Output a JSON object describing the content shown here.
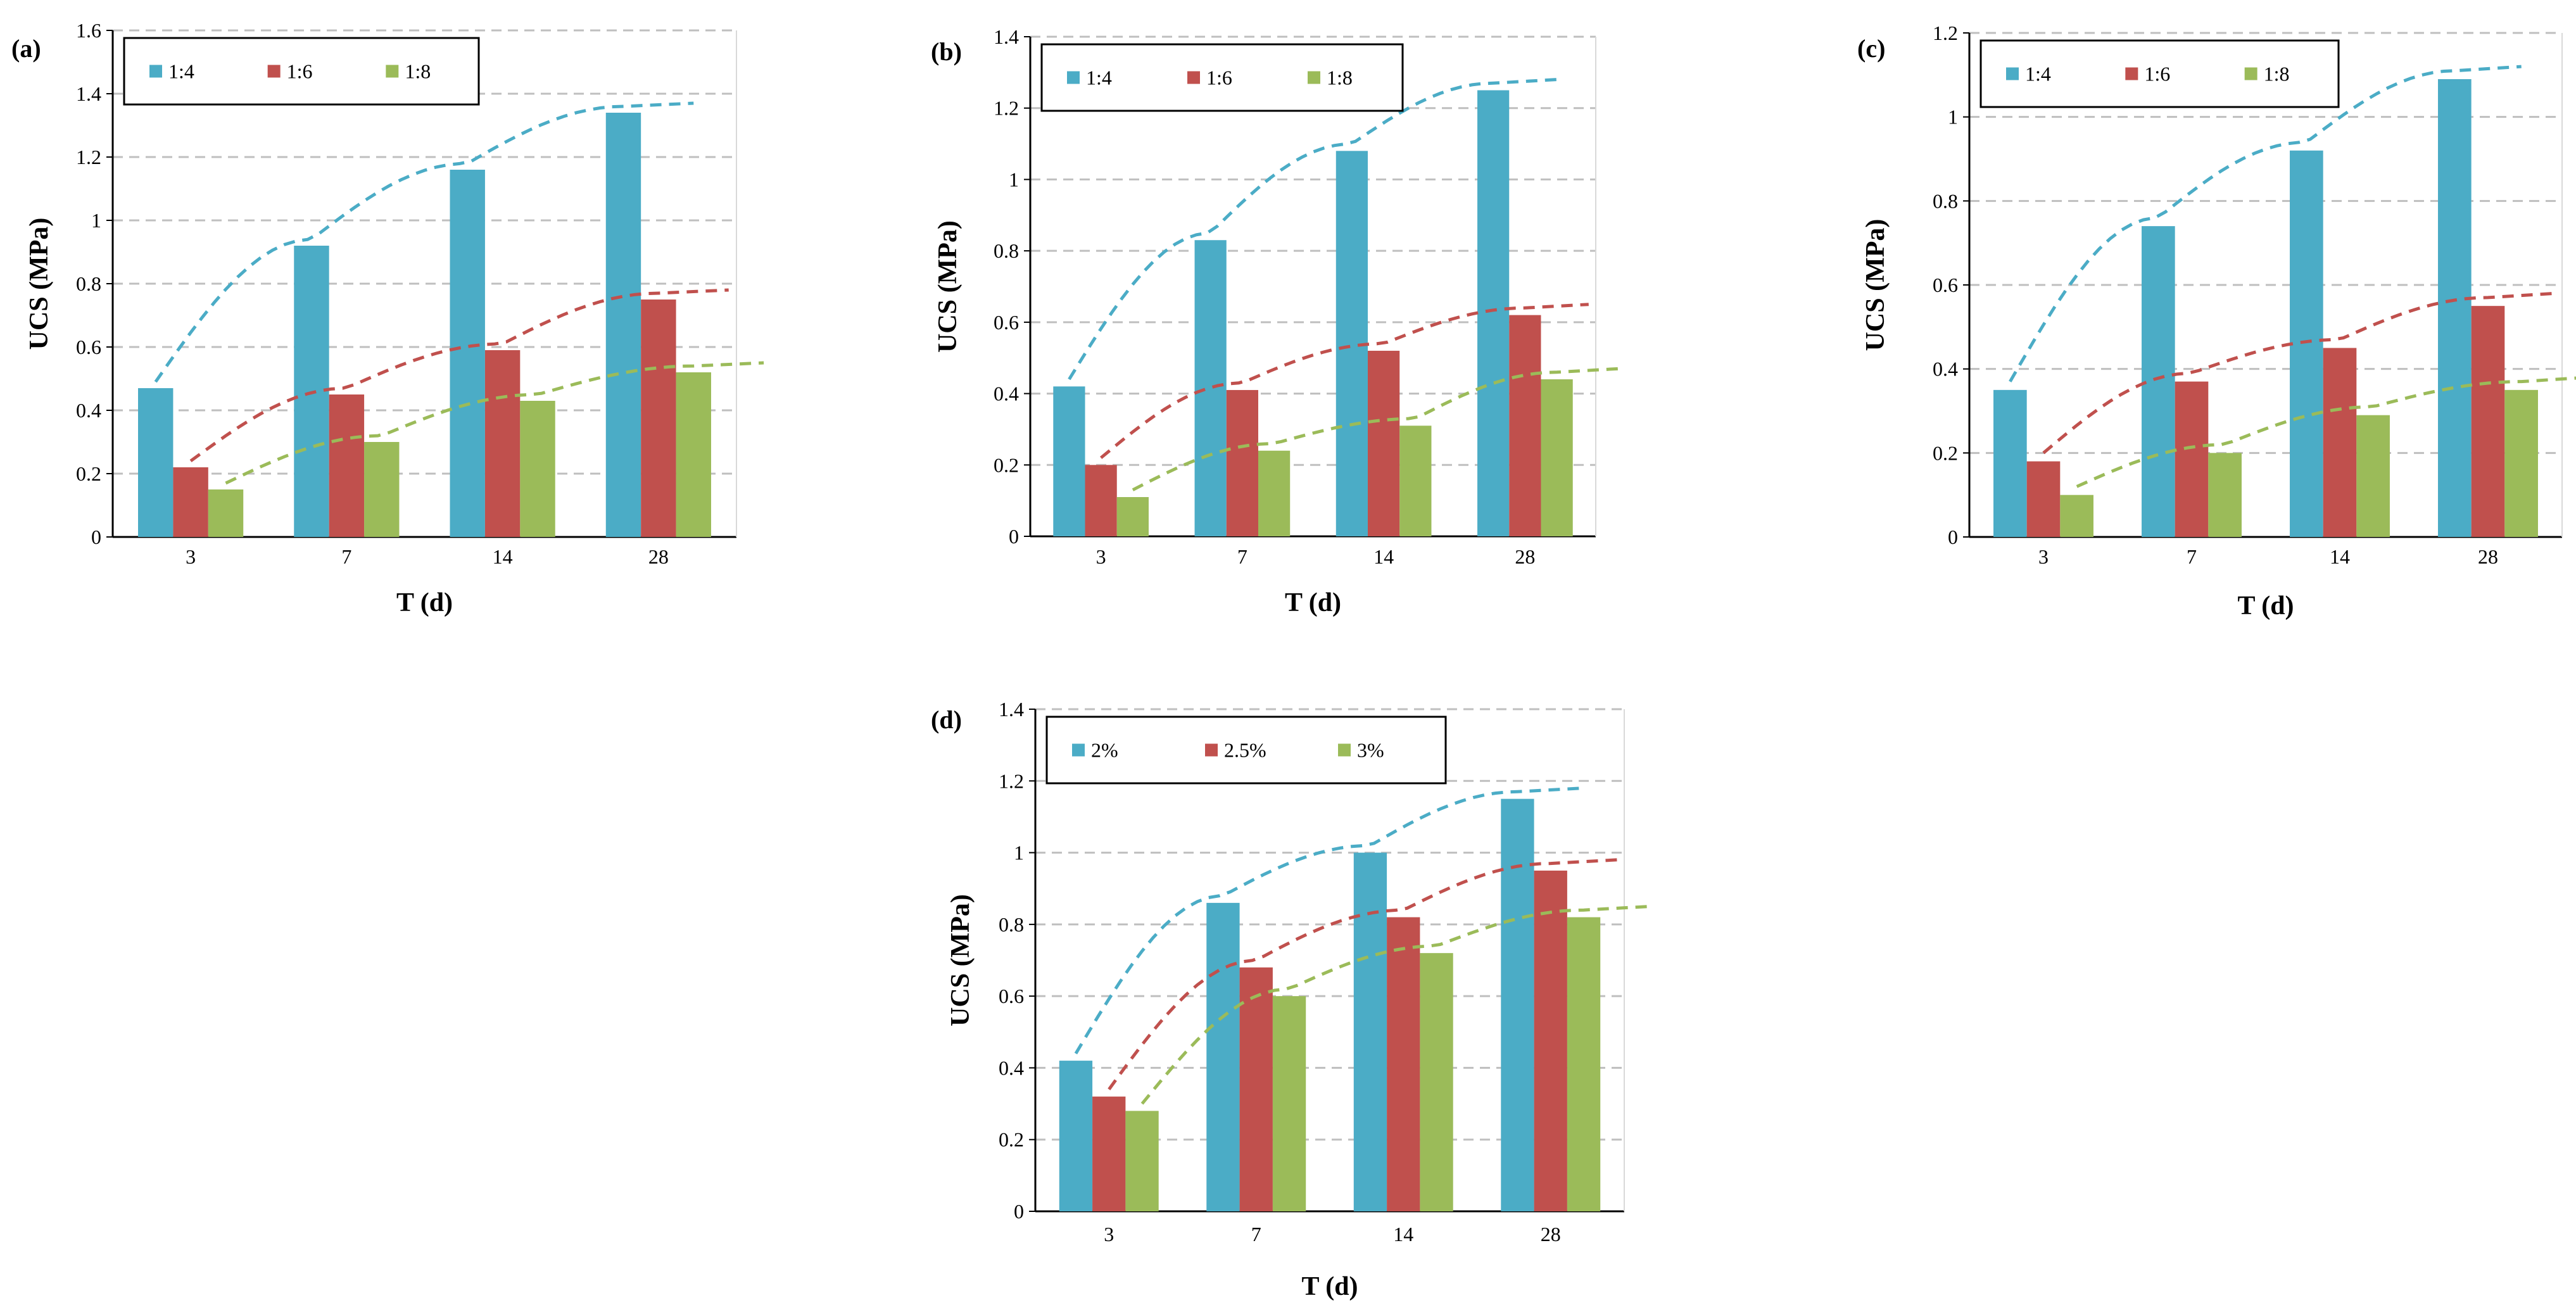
{
  "chart_data": [
    {
      "type": "bar",
      "panel_label": "(a)",
      "categories": [
        "3",
        "7",
        "14",
        "28"
      ],
      "xlabel": "T (d)",
      "ylabel": "UCS (MPa)",
      "ylim": [
        0,
        1.6
      ],
      "ytick_labels": [
        "0",
        "0.2",
        "0.4",
        "0.6",
        "0.8",
        "1",
        "1.2",
        "1.4",
        "1.6"
      ],
      "grid": true,
      "legend_position": "top-left",
      "trendlines": "dashed fit per series",
      "series": [
        {
          "name": "1:4",
          "color": "#4BACC6",
          "values": [
            0.47,
            0.92,
            1.16,
            1.34
          ]
        },
        {
          "name": "1:6",
          "color": "#C0504D",
          "values": [
            0.22,
            0.45,
            0.59,
            0.75
          ]
        },
        {
          "name": "1:8",
          "color": "#9BBB59",
          "values": [
            0.15,
            0.3,
            0.43,
            0.52
          ]
        }
      ]
    },
    {
      "type": "bar",
      "panel_label": "(b)",
      "categories": [
        "3",
        "7",
        "14",
        "28"
      ],
      "xlabel": "T (d)",
      "ylabel": "UCS (MPa)",
      "ylim": [
        0,
        1.4
      ],
      "ytick_labels": [
        "0",
        "0.2",
        "0.4",
        "0.6",
        "0.8",
        "1",
        "1.2",
        "1.4"
      ],
      "grid": true,
      "legend_position": "top-left",
      "trendlines": "dashed fit per series",
      "series": [
        {
          "name": "1:4",
          "color": "#4BACC6",
          "values": [
            0.42,
            0.83,
            1.08,
            1.25
          ]
        },
        {
          "name": "1:6",
          "color": "#C0504D",
          "values": [
            0.2,
            0.41,
            0.52,
            0.62
          ]
        },
        {
          "name": "1:8",
          "color": "#9BBB59",
          "values": [
            0.11,
            0.24,
            0.31,
            0.44
          ]
        }
      ]
    },
    {
      "type": "bar",
      "panel_label": "(c)",
      "categories": [
        "3",
        "7",
        "14",
        "28"
      ],
      "xlabel": "T (d)",
      "ylabel": "UCS (MPa)",
      "ylim": [
        0,
        1.2
      ],
      "ytick_labels": [
        "0",
        "0.2",
        "0.4",
        "0.6",
        "0.8",
        "1",
        "1.2"
      ],
      "grid": true,
      "legend_position": "top-left",
      "trendlines": "dashed fit per series",
      "series": [
        {
          "name": "1:4",
          "color": "#4BACC6",
          "values": [
            0.35,
            0.74,
            0.92,
            1.09
          ]
        },
        {
          "name": "1:6",
          "color": "#C0504D",
          "values": [
            0.18,
            0.37,
            0.45,
            0.55
          ]
        },
        {
          "name": "1:8",
          "color": "#9BBB59",
          "values": [
            0.1,
            0.2,
            0.29,
            0.35
          ]
        }
      ]
    },
    {
      "type": "bar",
      "panel_label": "(d)",
      "categories": [
        "3",
        "7",
        "14",
        "28"
      ],
      "xlabel": "T (d)",
      "ylabel": "UCS (MPa)",
      "ylim": [
        0,
        1.4
      ],
      "ytick_labels": [
        "0",
        "0.2",
        "0.4",
        "0.6",
        "0.8",
        "1",
        "1.2",
        "1.4"
      ],
      "grid": true,
      "legend_position": "top-left",
      "trendlines": "dashed fit per series",
      "series": [
        {
          "name": "2%",
          "color": "#4BACC6",
          "values": [
            0.42,
            0.86,
            1.0,
            1.15
          ]
        },
        {
          "name": "2.5%",
          "color": "#C0504D",
          "values": [
            0.32,
            0.68,
            0.82,
            0.95
          ]
        },
        {
          "name": "3%",
          "color": "#9BBB59",
          "values": [
            0.28,
            0.6,
            0.72,
            0.82
          ]
        }
      ]
    }
  ]
}
